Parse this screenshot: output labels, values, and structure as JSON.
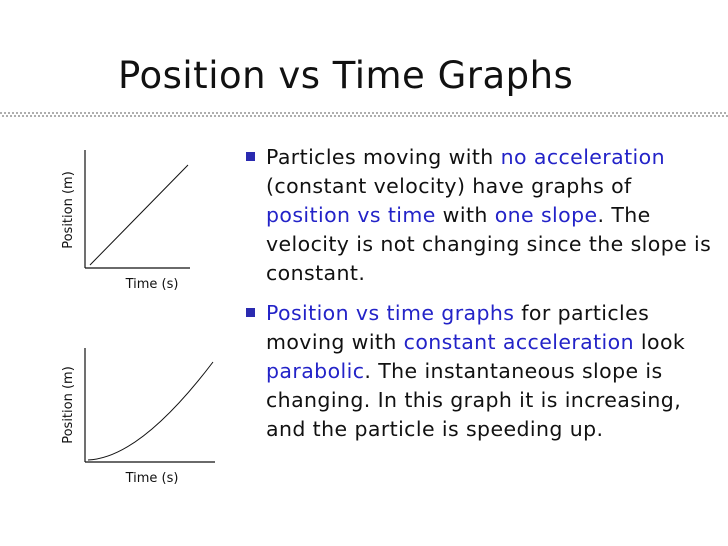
{
  "title": "Position vs Time Graphs",
  "graphs": [
    {
      "y_label": "Position (m)",
      "x_label": "Time (s)"
    },
    {
      "y_label": "Position (m)",
      "x_label": "Time (s)"
    }
  ],
  "bullets": [
    {
      "segments": [
        {
          "text": "Particles moving with "
        },
        {
          "text": "no acceleration",
          "highlight": true
        },
        {
          "text": " (constant velocity) have graphs of "
        },
        {
          "text": "position vs time",
          "highlight": true
        },
        {
          "text": " with "
        },
        {
          "text": "one slope",
          "highlight": true
        },
        {
          "text": ". The velocity is not changing since the slope is constant."
        }
      ]
    },
    {
      "segments": [
        {
          "text": "Position vs time graphs",
          "highlight": true
        },
        {
          "text": " for particles moving with "
        },
        {
          "text": "constant acceleration",
          "highlight": true
        },
        {
          "text": " look "
        },
        {
          "text": "parabolic",
          "highlight": true
        },
        {
          "text": ". The instantaneous slope is changing. In this graph it is increasing, and the particle is speeding up."
        }
      ]
    }
  ]
}
